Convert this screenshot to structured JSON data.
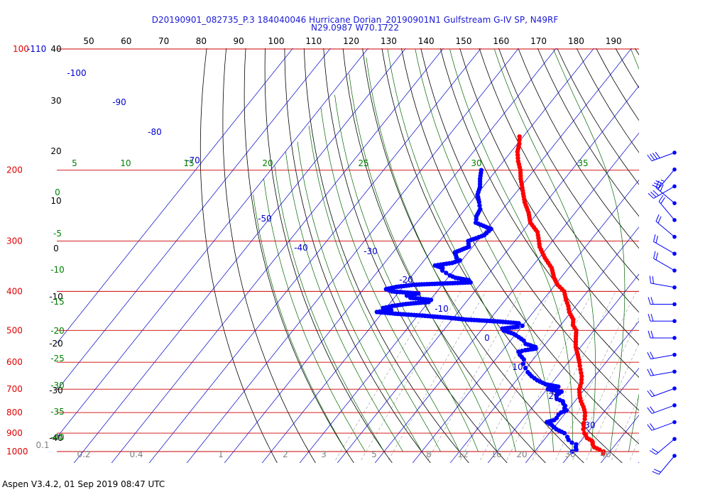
{
  "header": {
    "title_line1": "D20190901_082735_P.3 184040046 Hurricane Dorian_20190901N1 Gulfstream G-IV SP, N49RF",
    "title_line2": "N29.0987 W70.1722"
  },
  "footer": {
    "text": "Aspen V3.4.2, 01 Sep 2019  08:47 UTC"
  },
  "colors": {
    "temperature": "#ff0000",
    "dewpoint": "#0000ff",
    "isobar": "#cc0000",
    "isotherm": "#0000cc",
    "dry_adiabat": "#000000",
    "moist_adiabat": "#006600",
    "mixing_ratio": "#999999"
  },
  "chart_data": {
    "type": "skew-t",
    "pressure_axis": {
      "unit": "hPa",
      "scale": "log",
      "range": [
        1000,
        100
      ],
      "labels": [
        "1000",
        "900",
        "800",
        "700",
        "600",
        "500",
        "400",
        "300",
        "200",
        "100-110"
      ]
    },
    "isotherm_labels": [
      "-100",
      "-90",
      "-80",
      "-70",
      "-50",
      "-40",
      "-30",
      "-20",
      "-10",
      "0",
      "10",
      "20",
      "30"
    ],
    "top_axis_labels": [
      "50",
      "60",
      "70",
      "80",
      "90",
      "100",
      "110",
      "120",
      "130",
      "140",
      "150",
      "160",
      "170",
      "180",
      "190"
    ],
    "left_axis_labels": [
      "40",
      "30",
      "20",
      "10",
      "0",
      "-10",
      "-20",
      "-30",
      "-40"
    ],
    "moist_labels_top": [
      "5",
      "10",
      "15",
      "20",
      "25",
      "30",
      "35"
    ],
    "moist_labels_left": [
      "0",
      "-5",
      "-10",
      "-15",
      "-20",
      "-25",
      "-30",
      "-35",
      "-40"
    ],
    "mixing_ratio_labels": [
      "0.1",
      "0.2",
      "0.4",
      "1",
      "2",
      "3",
      "5",
      "8",
      "12",
      "16",
      "20",
      "30",
      "40"
    ],
    "temperature": {
      "p": [
        1010,
        1000,
        990,
        975,
        960,
        950,
        940,
        925,
        910,
        900,
        880,
        860,
        850,
        830,
        800,
        775,
        750,
        725,
        700,
        675,
        650,
        625,
        600,
        575,
        550,
        525,
        500,
        485,
        470,
        450,
        435,
        420,
        400,
        385,
        370,
        350,
        330,
        310,
        300,
        285,
        270,
        255,
        240,
        225,
        210,
        200,
        190,
        180,
        172,
        165
      ],
      "t": [
        28.6,
        28.3,
        26.9,
        24.9,
        23.9,
        23.5,
        22.9,
        21.0,
        20.1,
        19.3,
        18.2,
        17.4,
        17.0,
        16.4,
        15.1,
        13.5,
        11.6,
        10.0,
        8.6,
        7.8,
        6.5,
        4.7,
        2.9,
        0.9,
        -1.3,
        -3.0,
        -4.7,
        -6.7,
        -7.8,
        -10.5,
        -12.0,
        -13.9,
        -16.2,
        -19.4,
        -21.8,
        -24.5,
        -28.5,
        -32.2,
        -33.6,
        -35.9,
        -39.8,
        -42.4,
        -45.7,
        -48.6,
        -51.7,
        -53.6,
        -56.1,
        -58.3,
        -59.5,
        -61.0
      ]
    },
    "dewpoint": {
      "p": [
        1000,
        990,
        975,
        960,
        950,
        935,
        920,
        900,
        880,
        860,
        845,
        835,
        825,
        810,
        800,
        790,
        780,
        770,
        760,
        750,
        740,
        725,
        710,
        700,
        690,
        680,
        665,
        650,
        635,
        620,
        605,
        590,
        575,
        565,
        560,
        555,
        550,
        540,
        530,
        520,
        510,
        500,
        495,
        490,
        487,
        480,
        475,
        470,
        465,
        460,
        455,
        450,
        445,
        440,
        435,
        430,
        425,
        420,
        415,
        410,
        405,
        400,
        395,
        390,
        385,
        380,
        375,
        370,
        365,
        360,
        355,
        350,
        345,
        340,
        335,
        330,
        320,
        310,
        300,
        290,
        280,
        270,
        260,
        250,
        240,
        230,
        220,
        210,
        200
      ],
      "td": [
        20.0,
        20.7,
        20.0,
        19.5,
        18.0,
        16.5,
        15.6,
        14.0,
        11.0,
        9.0,
        7.0,
        8.5,
        8.7,
        8.5,
        8.7,
        9.7,
        8.7,
        8.4,
        7.4,
        6.8,
        4.7,
        3.9,
        4.4,
        0.3,
        2.5,
        -1.5,
        -4.5,
        -6.8,
        -8.7,
        -10.2,
        -11.7,
        -12.5,
        -14.5,
        -15.5,
        -14.0,
        -11.6,
        -12.0,
        -15.3,
        -16.5,
        -18.5,
        -20.6,
        -24.0,
        -24.7,
        -21.0,
        -20.0,
        -21.5,
        -27.5,
        -36.3,
        -41.5,
        -48.0,
        -55.6,
        -61.6,
        -58.2,
        -60.8,
        -58.8,
        -55.6,
        -50.0,
        -49.8,
        -55.7,
        -57.1,
        -54.5,
        -62.0,
        -64.0,
        -61.8,
        -57.5,
        -43.0,
        -44.0,
        -48.0,
        -50.0,
        -51.5,
        -53.0,
        -53.5,
        -56.0,
        -52.0,
        -50.5,
        -52.0,
        -53.5,
        -51.0,
        -52.4,
        -49.4,
        -48.9,
        -54.3,
        -55.5,
        -56.0,
        -57.8,
        -59.8,
        -60.8,
        -62.5,
        -64.0
      ]
    },
    "wind_barbs": {
      "speed_kt": [
        40,
        35,
        30,
        30,
        20,
        20,
        20,
        20,
        20,
        20,
        20,
        20,
        20,
        20,
        20,
        20,
        20,
        20,
        20
      ],
      "direction_deg": [
        250,
        220,
        240,
        310,
        320,
        310,
        300,
        300,
        280,
        270,
        270,
        270,
        260,
        260,
        250,
        250,
        250,
        230,
        220
      ]
    },
    "grid": true
  }
}
